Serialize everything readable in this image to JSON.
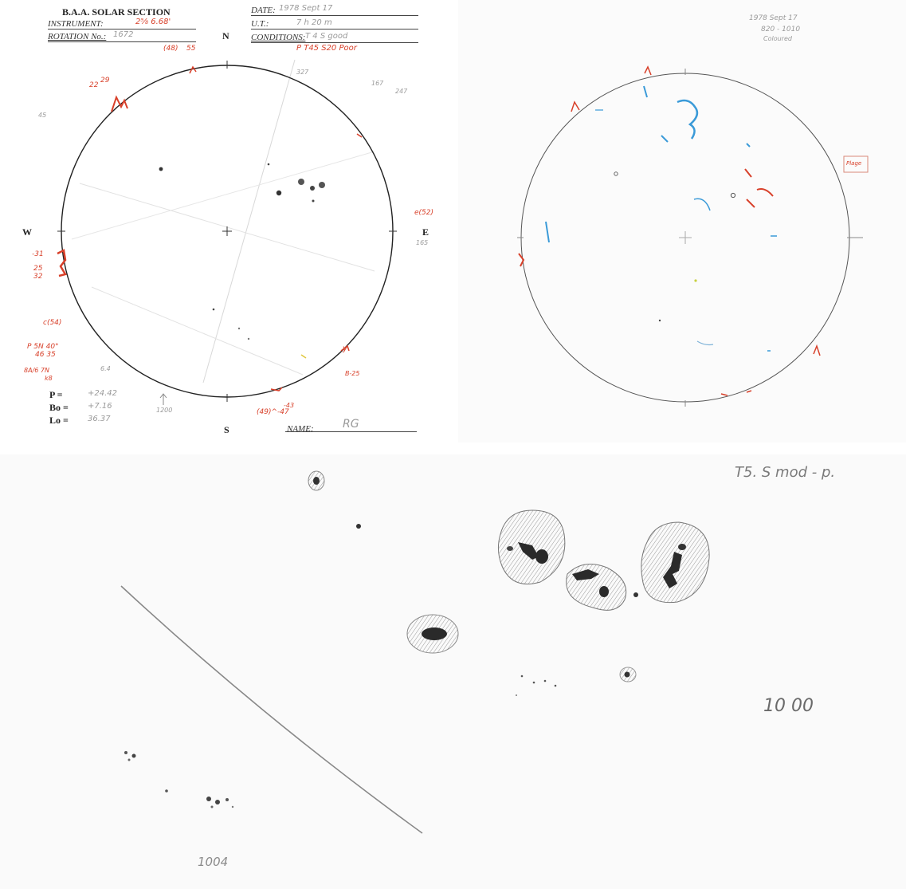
{
  "form": {
    "header": "B.A.A. SOLAR SECTION",
    "instrument_label": "INSTRUMENT:",
    "instrument_value": "2⅝ 6.68'",
    "rotation_label": "ROTATION No.:",
    "rotation_value": "1672",
    "date_label": "DATE:",
    "date_value": "1978 Sept 17",
    "ut_label": "U.T.:",
    "ut_value": "7    h 20  m",
    "conditions_label": "CONDITIONS:",
    "conditions_value": "T 4  S good",
    "p_note": "P  T45  S20  Poor",
    "north": "N",
    "south": "S",
    "east": "E",
    "west": "W",
    "p_label": "P  =",
    "p_value": "+24.42",
    "bo_label": "Bo =",
    "bo_value": "+7.16",
    "lo_label": "Lo =",
    "lo_value": "36.37",
    "name_label": "NAME:",
    "name_value": "RG",
    "time_note": "1200",
    "red_notes": [
      "(48)",
      "55",
      "29",
      "22",
      "e(52)",
      "-31",
      "25",
      "32",
      "c(54)",
      "P 5N 40°",
      "46  35",
      "8A/6 7N",
      "k8",
      "(49)^-47",
      "-43",
      "B-25",
      "y"
    ],
    "gray_notes": [
      "167",
      "247",
      "327",
      "45",
      "165",
      "6.4"
    ]
  },
  "halpha": {
    "date_note": "1978 Sept 17",
    "time_note": "820 - 1010",
    "condition_note": "Coloured",
    "box_note": "Plage"
  },
  "detail": {
    "top_note": "T5. S mod - p.",
    "time_right": "10 00",
    "time_bottom": "1004"
  },
  "colors": {
    "ink": "#222222",
    "red_pencil": "#d8402a",
    "blue_pencil": "#3a9ad8",
    "graphite": "#555555"
  }
}
